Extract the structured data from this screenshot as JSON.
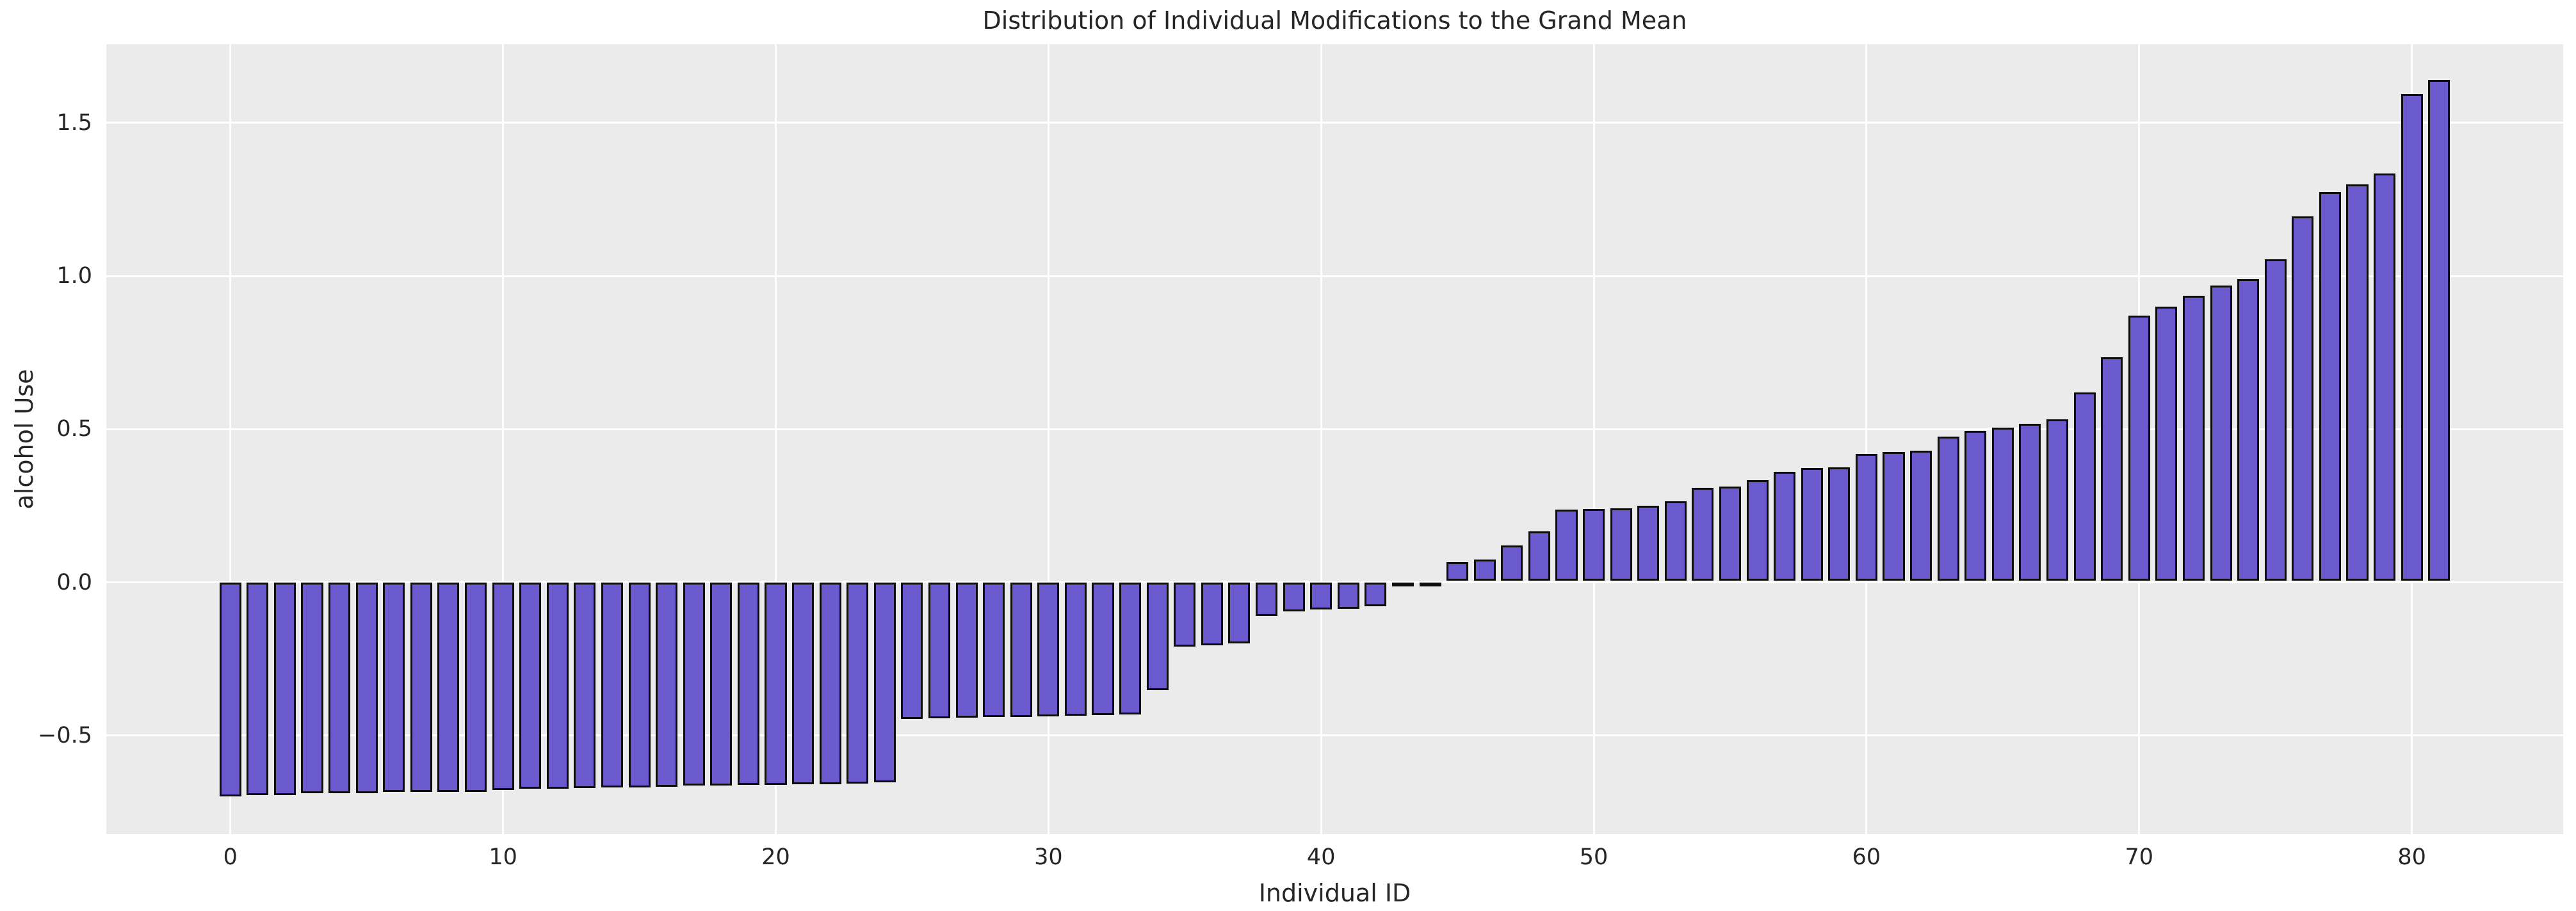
{
  "chart_data": {
    "type": "bar",
    "title": "Distribution of Individual Modifications to the Grand Mean",
    "xlabel": "Individual ID",
    "ylabel": "alcohol Use",
    "x": [
      0,
      1,
      2,
      3,
      4,
      5,
      6,
      7,
      8,
      9,
      10,
      11,
      12,
      13,
      14,
      15,
      16,
      17,
      18,
      19,
      20,
      21,
      22,
      23,
      24,
      25,
      26,
      27,
      28,
      29,
      30,
      31,
      32,
      33,
      34,
      35,
      36,
      37,
      38,
      39,
      40,
      41,
      42,
      43,
      44,
      45,
      46,
      47,
      48,
      49,
      50,
      51,
      52,
      53,
      54,
      55,
      56,
      57,
      58,
      59,
      60,
      61,
      62,
      63,
      64,
      65,
      66,
      67,
      68,
      69,
      70,
      71,
      72,
      73,
      74,
      75,
      76,
      77,
      78,
      79,
      80,
      81
    ],
    "values": [
      -0.705,
      -0.7,
      -0.7,
      -0.695,
      -0.695,
      -0.695,
      -0.69,
      -0.69,
      -0.69,
      -0.69,
      -0.685,
      -0.68,
      -0.68,
      -0.678,
      -0.675,
      -0.675,
      -0.673,
      -0.67,
      -0.67,
      -0.668,
      -0.667,
      -0.665,
      -0.665,
      -0.663,
      -0.66,
      -0.452,
      -0.45,
      -0.448,
      -0.446,
      -0.445,
      -0.444,
      -0.442,
      -0.44,
      -0.437,
      -0.358,
      -0.215,
      -0.212,
      -0.205,
      -0.115,
      -0.1,
      -0.095,
      -0.093,
      -0.085,
      -0.015,
      -0.004,
      0.066,
      0.074,
      0.12,
      0.166,
      0.238,
      0.239,
      0.241,
      0.251,
      0.265,
      0.308,
      0.312,
      0.334,
      0.36,
      0.374,
      0.376,
      0.42,
      0.426,
      0.429,
      0.475,
      0.494,
      0.505,
      0.518,
      0.533,
      0.62,
      0.735,
      0.87,
      0.9,
      0.935,
      0.97,
      0.99,
      1.055,
      1.195,
      1.275,
      1.3,
      1.335,
      1.595,
      1.64
    ],
    "bar_width_fraction": 0.8,
    "xlim": [
      -4.55,
      85.55
    ],
    "ylim": [
      -0.822,
      1.757
    ],
    "x_ticks": [
      0,
      10,
      20,
      30,
      40,
      50,
      60,
      70,
      80
    ],
    "x_tick_labels": [
      "0",
      "10",
      "20",
      "30",
      "40",
      "50",
      "60",
      "70",
      "80"
    ],
    "y_ticks": [
      -0.5,
      0.0,
      0.5,
      1.0,
      1.5
    ],
    "y_tick_labels": [
      "−0.5",
      "0.0",
      "0.5",
      "1.0",
      "1.5"
    ],
    "grid": true,
    "legend_position": "none",
    "colors": {
      "bar_fill": "#6a5acd",
      "bar_edge": "#0d0d0d",
      "plot_background": "#ebebeb",
      "gridline": "#ffffff",
      "text": "#262626",
      "figure_background": "#ffffff"
    }
  }
}
